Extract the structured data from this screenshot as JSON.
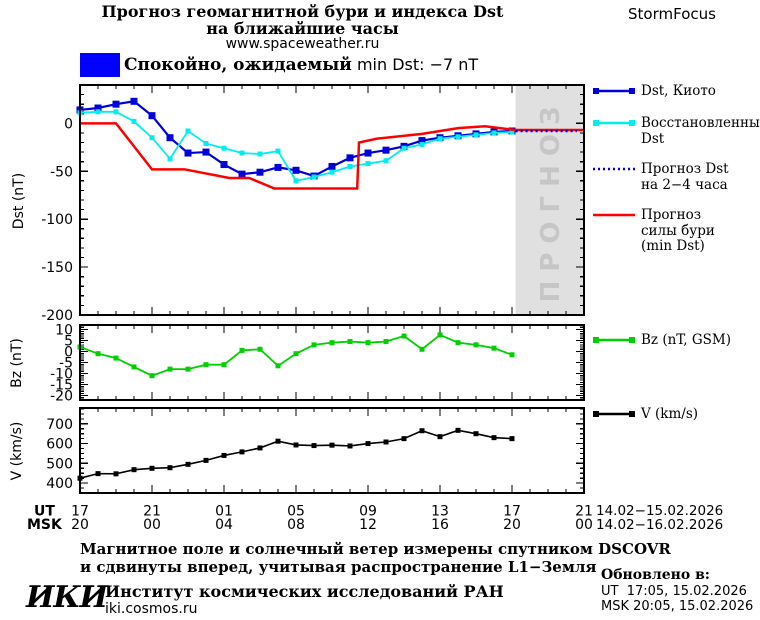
{
  "header": {
    "title_line1": "Прогноз геомагнитной бури и индекса Dst",
    "title_line2": "на ближайшие часы",
    "website": "www.spaceweather.ru",
    "brand": "StormFocus"
  },
  "status": {
    "level_color": "#0000ff",
    "text_ru": "Спокойно, ожидаемый",
    "text_en": "min Dst: −7 nT"
  },
  "forecast_band": {
    "label": "ПРОГНОЗ",
    "fill": "#e0e0e0",
    "text_color": "#c6c6c6",
    "start_hour": 24.2
  },
  "xaxis": {
    "ut_label": "UT",
    "msk_label": "MSK",
    "ut_ticks": [
      "17",
      "21",
      "01",
      "05",
      "09",
      "13",
      "17",
      "21"
    ],
    "msk_ticks": [
      "20",
      "00",
      "04",
      "08",
      "12",
      "16",
      "20",
      "00"
    ],
    "ut_range": "14.02−15.02.2026",
    "msk_range": "14.02−16.02.2026",
    "hours_span": 28,
    "tick_every_h": 4
  },
  "chart_data": [
    {
      "id": "dst",
      "type": "line",
      "ylabel": "Dst (nT)",
      "ylim": [
        -200,
        40
      ],
      "yticks": [
        0,
        -50,
        -100,
        -150,
        -200
      ],
      "minor_y": 10,
      "series": [
        {
          "name": "Dst, Киото",
          "color": "#0000dd",
          "marker": true,
          "msize": 7,
          "width": 2.2,
          "x": [
            0,
            1,
            2,
            3,
            4,
            5,
            6,
            7,
            8,
            9,
            10,
            11,
            12,
            13,
            14,
            15,
            16,
            17,
            18,
            19,
            20,
            21,
            22,
            23,
            24
          ],
          "y": [
            14,
            16,
            20,
            23,
            8,
            -15,
            -31,
            -30,
            -43,
            -53,
            -51,
            -46,
            -49,
            -55,
            -45,
            -36,
            -31,
            -28,
            -24,
            -18,
            -15,
            -13,
            -11,
            -9,
            -8
          ]
        },
        {
          "name": "Восстановленный Dst",
          "color": "#00eeee",
          "marker": true,
          "msize": 5,
          "width": 1.8,
          "x": [
            0,
            1,
            2,
            3,
            4,
            5,
            6,
            7,
            8,
            9,
            10,
            11,
            12,
            13,
            14,
            15,
            16,
            17,
            18,
            19,
            20,
            21,
            22,
            23,
            24
          ],
          "y": [
            11,
            12,
            12,
            2,
            -15,
            -37,
            -8,
            -21,
            -26,
            -31,
            -32,
            -29,
            -60,
            -56,
            -51,
            -45,
            -42,
            -39,
            -26,
            -22,
            -16,
            -14,
            -12,
            -10,
            -9
          ]
        },
        {
          "name": "Прогноз силы бури (min Dst)",
          "color": "#ff0000",
          "width": 2.5,
          "x": [
            0,
            2,
            4,
            5.8,
            8.3,
            9.4,
            10.8,
            15.4,
            15.5,
            16.5,
            19,
            21,
            22.5,
            24.2,
            28
          ],
          "y": [
            0,
            0,
            -48,
            -48,
            -57,
            -57,
            -68,
            -68,
            -20,
            -16,
            -11,
            -5,
            -3,
            -7,
            -7
          ]
        },
        {
          "name": "Прогноз Dst на 2−4 часа",
          "color": "#0000dd",
          "width": 2.5,
          "dash": "2 3",
          "x": [
            24.2,
            27.6
          ],
          "y": [
            -8,
            -8
          ]
        }
      ]
    },
    {
      "id": "bz",
      "type": "line",
      "ylabel": "Bz (nT)",
      "ylim": [
        -22,
        12
      ],
      "yticks": [
        10,
        5,
        0,
        -5,
        -10,
        -15,
        -20
      ],
      "minor_y": 1,
      "series": [
        {
          "name": "Bz (nT, GSM)",
          "color": "#00d000",
          "marker": true,
          "msize": 5,
          "width": 1.8,
          "x": [
            0,
            1,
            2,
            3,
            4,
            5,
            6,
            7,
            8,
            9,
            10,
            11,
            12,
            13,
            14,
            15,
            16,
            17,
            18,
            19,
            20,
            21,
            22,
            23,
            24
          ],
          "y": [
            2,
            -1,
            -3,
            -7,
            -11,
            -8,
            -8,
            -6,
            -6,
            0.5,
            1,
            -6.5,
            -1,
            3,
            4,
            4.5,
            4,
            4.5,
            7,
            1,
            7.5,
            4,
            3,
            1.5,
            -1.5
          ]
        }
      ]
    },
    {
      "id": "v",
      "type": "line",
      "ylabel": "V (km/s)",
      "ylim": [
        350,
        780
      ],
      "yticks": [
        700,
        600,
        500,
        400
      ],
      "minor_y": 25,
      "series": [
        {
          "name": "V (km/s)",
          "color": "#000000",
          "marker": true,
          "msize": 5,
          "width": 1.6,
          "x": [
            0,
            1,
            2,
            3,
            4,
            5,
            6,
            7,
            8,
            9,
            10,
            11,
            12,
            13,
            14,
            15,
            16,
            17,
            18,
            19,
            20,
            21,
            22,
            23,
            24
          ],
          "y": [
            425,
            448,
            447,
            468,
            475,
            478,
            495,
            515,
            540,
            558,
            578,
            612,
            593,
            590,
            592,
            588,
            600,
            608,
            625,
            665,
            635,
            667,
            650,
            630,
            625
          ]
        }
      ]
    }
  ],
  "legend_dst": [
    {
      "label_lines": [
        "Dst, Киото"
      ],
      "color": "#0000dd",
      "marker": true
    },
    {
      "label_lines": [
        "Восстановленный",
        "Dst"
      ],
      "color": "#00eeee",
      "marker": true
    },
    {
      "label_lines": [
        "Прогноз Dst",
        "на 2−4 часа"
      ],
      "color": "#0000dd",
      "dash": "2 3"
    },
    {
      "label_lines": [
        "Прогноз",
        "силы бури",
        "(min Dst)"
      ],
      "color": "#ff0000"
    }
  ],
  "legend_bz": [
    {
      "label_lines": [
        "Bz (nT, GSM)"
      ],
      "color": "#00d000",
      "marker": true
    }
  ],
  "legend_v": [
    {
      "label_lines": [
        "V (km/s)"
      ],
      "color": "#000000",
      "marker": true
    }
  ],
  "footer": {
    "note_line1": "Магнитное поле и солнечный ветер измерены спутником DSCOVR",
    "note_line2": "и сдвинуты вперед, учитывая распространение L1−Земля",
    "logo": "ИКИ",
    "institute": "Институт космических исследований РАН",
    "site": "iki.cosmos.ru",
    "updated_label": "Обновлено в:",
    "updated_ut": "UT  17:05, 15.02.2026",
    "updated_msk": "MSK 20:05, 15.02.2026"
  }
}
